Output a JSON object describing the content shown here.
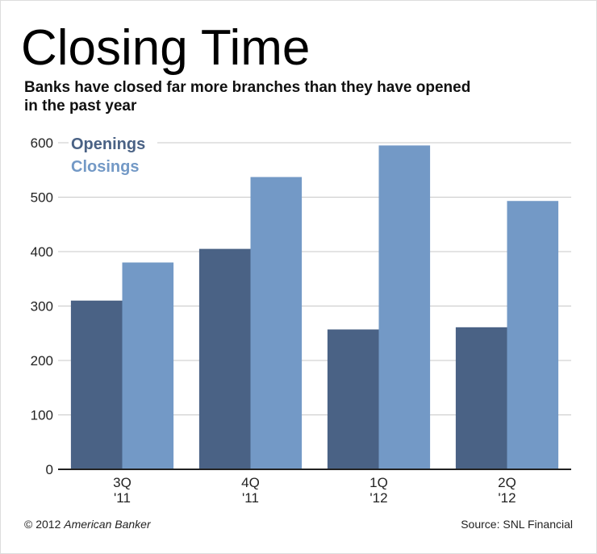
{
  "chart_data": {
    "type": "bar",
    "title": "Closing Time",
    "subtitle": [
      "Banks have closed far more branches than they have opened",
      "in the past year"
    ],
    "categories": [
      [
        "3Q",
        "'11"
      ],
      [
        "4Q",
        "'11"
      ],
      [
        "1Q",
        "'12"
      ],
      [
        "2Q",
        "'12"
      ]
    ],
    "series": [
      {
        "name": "Openings",
        "color": "#4a6285",
        "values": [
          310,
          405,
          257,
          261
        ]
      },
      {
        "name": "Closings",
        "color": "#7399c6",
        "values": [
          380,
          537,
          595,
          493
        ]
      }
    ],
    "ylim": [
      0,
      600
    ],
    "yticks": [
      0,
      100,
      200,
      300,
      400,
      500,
      600
    ],
    "grid": true,
    "legend": "top-left",
    "credit": {
      "prefix": "© 2012",
      "name": "American Banker"
    },
    "source": "Source: SNL Financial"
  }
}
